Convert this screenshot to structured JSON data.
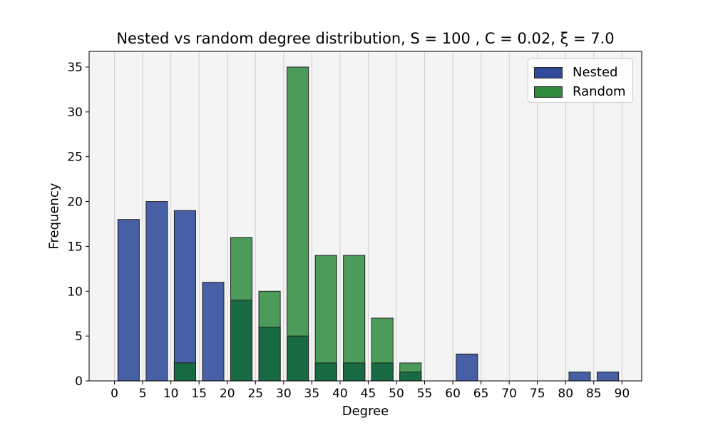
{
  "chart_data": {
    "type": "bar",
    "title": "Nested vs random degree distribution, S = 100 , C = 0.02, ξ = 7.0",
    "xlabel": "Degree",
    "ylabel": "Frequency",
    "x_ticks": [
      "0",
      "5",
      "10",
      "15",
      "20",
      "25",
      "30",
      "35",
      "40",
      "45",
      "50",
      "55",
      "60",
      "65",
      "70",
      "75",
      "80",
      "85",
      "90"
    ],
    "y_ticks": [
      "0",
      "5",
      "10",
      "15",
      "20",
      "25",
      "30",
      "35"
    ],
    "xlim": [
      -4.5,
      93.5
    ],
    "ylim": [
      0,
      36.75
    ],
    "bin_edges": [
      0,
      5,
      10,
      15,
      20,
      25,
      30,
      35,
      40,
      45,
      50,
      55,
      60,
      65,
      70,
      75,
      80,
      85,
      90
    ],
    "grid": "vertical",
    "legend_position": "top-right",
    "series": [
      {
        "name": "Nested",
        "color": "#2f4a99",
        "values": [
          18,
          20,
          19,
          11,
          9,
          6,
          5,
          2,
          2,
          2,
          1,
          0,
          3,
          0,
          0,
          0,
          1,
          1
        ]
      },
      {
        "name": "Random",
        "color": "#2e8b3e",
        "values": [
          0,
          0,
          2,
          0,
          16,
          10,
          35,
          14,
          14,
          7,
          2,
          0,
          0,
          0,
          0,
          0,
          0,
          0
        ]
      }
    ],
    "overlap_color": "#176a41"
  }
}
